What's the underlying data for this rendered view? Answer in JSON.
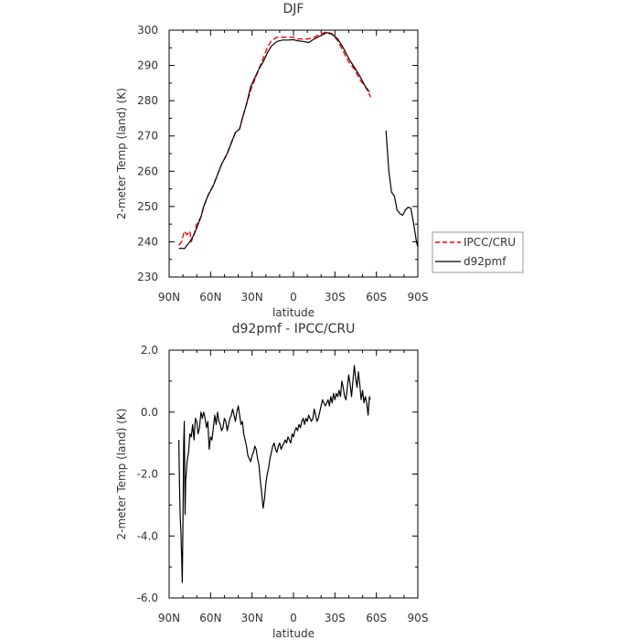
{
  "chart_data": [
    {
      "type": "line",
      "title": "DJF",
      "xlabel": "latitude",
      "ylabel": "2-meter Temp (land) (K)",
      "xlim": [
        90,
        -90
      ],
      "ylim": [
        230,
        300
      ],
      "x_tick_labels": [
        "90N",
        "60N",
        "30N",
        "0",
        "30S",
        "60S",
        "90S"
      ],
      "y_tick_labels": [
        "230",
        "240",
        "250",
        "260",
        "270",
        "280",
        "290",
        "300"
      ],
      "legend": "right-outside",
      "series": [
        {
          "name": "IPCC/CRU",
          "color": "#ff0000",
          "dash": "dashed",
          "segments": [
            [
              [
                83,
                239
              ],
              [
                81,
                240
              ],
              [
                79,
                243
              ],
              [
                77,
                242
              ],
              [
                75,
                243
              ],
              [
                74,
                240
              ],
              [
                72,
                242
              ],
              [
                70,
                245
              ],
              [
                67,
                247
              ],
              [
                65,
                250
              ],
              [
                62,
                253
              ],
              [
                58,
                256
              ],
              [
                55,
                259
              ],
              [
                52,
                262
              ],
              [
                48,
                265
              ],
              [
                45,
                268
              ],
              [
                42,
                271
              ],
              [
                39,
                272
              ],
              [
                37,
                275
              ],
              [
                34,
                279
              ],
              [
                31,
                283
              ],
              [
                28,
                286
              ],
              [
                25,
                289
              ],
              [
                22,
                292
              ],
              [
                19,
                295
              ],
              [
                16,
                297
              ],
              [
                12,
                298
              ],
              [
                8,
                298
              ],
              [
                4,
                298
              ],
              [
                0,
                298
              ],
              [
                -3,
                297.5
              ],
              [
                -7,
                297.5
              ],
              [
                -11,
                297.5
              ],
              [
                -15,
                298
              ],
              [
                -20,
                299
              ],
              [
                -24,
                299.5
              ],
              [
                -28,
                299
              ],
              [
                -32,
                297
              ],
              [
                -36,
                294
              ],
              [
                -40,
                291
              ],
              [
                -44,
                289
              ],
              [
                -48,
                286
              ],
              [
                -52,
                284
              ],
              [
                -56,
                281
              ]
            ]
          ]
        },
        {
          "name": "d92pmf",
          "color": "#000000",
          "dash": "solid",
          "segments": [
            [
              [
                83,
                238
              ],
              [
                81,
                238.2
              ],
              [
                79,
                238
              ],
              [
                77,
                239
              ],
              [
                75,
                240
              ],
              [
                72,
                242
              ],
              [
                70,
                244
              ],
              [
                67,
                247
              ],
              [
                65,
                250
              ],
              [
                62,
                253
              ],
              [
                58,
                256
              ],
              [
                55,
                259
              ],
              [
                52,
                262
              ],
              [
                48,
                265
              ],
              [
                45,
                268
              ],
              [
                42,
                271
              ],
              [
                39,
                272
              ],
              [
                37,
                275
              ],
              [
                34,
                279
              ],
              [
                31,
                284
              ],
              [
                28,
                286.5
              ],
              [
                25,
                289
              ],
              [
                22,
                291
              ],
              [
                19,
                293.5
              ],
              [
                16,
                295.5
              ],
              [
                12,
                296.8
              ],
              [
                8,
                297.2
              ],
              [
                4,
                297.2
              ],
              [
                0,
                297.3
              ],
              [
                -3,
                297
              ],
              [
                -7,
                296.8
              ],
              [
                -11,
                296.5
              ],
              [
                -15,
                297.5
              ],
              [
                -20,
                298.5
              ],
              [
                -24,
                299.3
              ],
              [
                -28,
                298.8
              ],
              [
                -32,
                297.5
              ],
              [
                -36,
                295
              ],
              [
                -40,
                292
              ],
              [
                -44,
                289.5
              ],
              [
                -48,
                287
              ],
              [
                -52,
                284
              ],
              [
                -55,
                282.5
              ]
            ],
            [
              [
                -67,
                271.5
              ],
              [
                -69,
                260
              ],
              [
                -71,
                254
              ],
              [
                -73,
                253
              ],
              [
                -75,
                249
              ],
              [
                -77,
                248
              ],
              [
                -79,
                247.5
              ],
              [
                -81,
                249
              ],
              [
                -83,
                249.8
              ],
              [
                -85,
                249.5
              ],
              [
                -87,
                245
              ],
              [
                -89,
                240
              ],
              [
                -90,
                238.5
              ]
            ]
          ]
        }
      ]
    },
    {
      "type": "line",
      "title": "d92pmf - IPCC/CRU",
      "xlabel": "latitude",
      "ylabel": "2-meter Temp (land) (K)",
      "xlim": [
        90,
        -90
      ],
      "ylim": [
        -6,
        2
      ],
      "x_tick_labels": [
        "90N",
        "60N",
        "30N",
        "0",
        "30S",
        "60S",
        "90S"
      ],
      "y_tick_labels": [
        "-6.0",
        "-4.0",
        "-2.0",
        "0.0",
        "2.0"
      ],
      "series": [
        {
          "color": "#000000",
          "values_xy": [
            [
              83,
              -0.9
            ],
            [
              82.5,
              -2.3
            ],
            [
              82,
              -3.4
            ],
            [
              81.5,
              -3.8
            ],
            [
              81,
              -4.6
            ],
            [
              80.5,
              -5.5
            ],
            [
              80,
              -3.6
            ],
            [
              79.5,
              -1.0
            ],
            [
              79,
              -0.3
            ],
            [
              78.5,
              -3.3
            ],
            [
              78,
              -2.2
            ],
            [
              77,
              -1.6
            ],
            [
              76,
              -1.3
            ],
            [
              75,
              -0.7
            ],
            [
              74,
              -0.8
            ],
            [
              73,
              -0.4
            ],
            [
              72,
              -0.9
            ],
            [
              71,
              -0.2
            ],
            [
              70,
              -0.3
            ],
            [
              69,
              -0.7
            ],
            [
              68,
              -0.5
            ],
            [
              67,
              0.0
            ],
            [
              66,
              -0.2
            ],
            [
              65,
              0.0
            ],
            [
              64,
              -0.2
            ],
            [
              63,
              -0.5
            ],
            [
              62,
              -0.3
            ],
            [
              61,
              -1.2
            ],
            [
              60,
              -0.8
            ],
            [
              59,
              -0.9
            ],
            [
              58,
              -0.5
            ],
            [
              57,
              -0.1
            ],
            [
              56,
              -0.4
            ],
            [
              55,
              0.0
            ],
            [
              54,
              -0.3
            ],
            [
              53,
              -0.4
            ],
            [
              52,
              -0.6
            ],
            [
              51,
              -0.5
            ],
            [
              50,
              -0.2
            ],
            [
              49,
              -0.3
            ],
            [
              48,
              -0.6
            ],
            [
              47,
              -0.4
            ],
            [
              46,
              -0.2
            ],
            [
              45,
              -0.1
            ],
            [
              44,
              0.1
            ],
            [
              43,
              -0.1
            ],
            [
              42,
              -0.3
            ],
            [
              41,
              0.0
            ],
            [
              40,
              0.2
            ],
            [
              39,
              -0.1
            ],
            [
              38,
              -0.4
            ],
            [
              37,
              -0.3
            ],
            [
              36,
              -0.7
            ],
            [
              35,
              -0.9
            ],
            [
              34,
              -1.1
            ],
            [
              33,
              -1.4
            ],
            [
              32,
              -1.5
            ],
            [
              31,
              -1.6
            ],
            [
              30,
              -1.4
            ],
            [
              29,
              -1.3
            ],
            [
              28,
              -1.1
            ],
            [
              27,
              -1.2
            ],
            [
              26,
              -1.5
            ],
            [
              25,
              -1.7
            ],
            [
              24,
              -2.2
            ],
            [
              23,
              -2.6
            ],
            [
              22,
              -3.1
            ],
            [
              21,
              -2.8
            ],
            [
              20,
              -2.3
            ],
            [
              19,
              -2.0
            ],
            [
              18,
              -1.8
            ],
            [
              17,
              -1.5
            ],
            [
              16,
              -1.3
            ],
            [
              15,
              -1.1
            ],
            [
              14,
              -1.0
            ],
            [
              13,
              -1.2
            ],
            [
              12,
              -1.3
            ],
            [
              11,
              -1.1
            ],
            [
              10,
              -1.0
            ],
            [
              9,
              -1.2
            ],
            [
              8,
              -1.1
            ],
            [
              7,
              -1.0
            ],
            [
              6,
              -0.9
            ],
            [
              5,
              -1.0
            ],
            [
              4,
              -0.8
            ],
            [
              3,
              -0.9
            ],
            [
              2,
              -1.0
            ],
            [
              1,
              -0.7
            ],
            [
              0,
              -0.8
            ],
            [
              -1,
              -0.6
            ],
            [
              -2,
              -0.5
            ],
            [
              -3,
              -0.6
            ],
            [
              -4,
              -0.4
            ],
            [
              -5,
              -0.5
            ],
            [
              -6,
              -0.3
            ],
            [
              -7,
              -0.2
            ],
            [
              -8,
              -0.4
            ],
            [
              -9,
              -0.2
            ],
            [
              -10,
              -0.3
            ],
            [
              -11,
              -0.1
            ],
            [
              -12,
              -0.2
            ],
            [
              -13,
              -0.3
            ],
            [
              -14,
              -0.2
            ],
            [
              -15,
              0.1
            ],
            [
              -16,
              -0.1
            ],
            [
              -17,
              -0.3
            ],
            [
              -18,
              -0.2
            ],
            [
              -19,
              0.0
            ],
            [
              -20,
              0.2
            ],
            [
              -21,
              0.4
            ],
            [
              -22,
              0.3
            ],
            [
              -23,
              0.2
            ],
            [
              -24,
              0.3
            ],
            [
              -25,
              0.4
            ],
            [
              -26,
              0.2
            ],
            [
              -27,
              0.5
            ],
            [
              -28,
              0.3
            ],
            [
              -29,
              0.6
            ],
            [
              -30,
              0.4
            ],
            [
              -31,
              0.6
            ],
            [
              -32,
              0.5
            ],
            [
              -33,
              0.7
            ],
            [
              -34,
              0.5
            ],
            [
              -35,
              1.0
            ],
            [
              -36,
              0.8
            ],
            [
              -37,
              0.5
            ],
            [
              -38,
              0.4
            ],
            [
              -39,
              0.8
            ],
            [
              -40,
              1.2
            ],
            [
              -41,
              0.9
            ],
            [
              -42,
              0.5
            ],
            [
              -43,
              1.0
            ],
            [
              -44,
              1.5
            ],
            [
              -45,
              1.1
            ],
            [
              -46,
              0.8
            ],
            [
              -47,
              1.3
            ],
            [
              -48,
              0.9
            ],
            [
              -49,
              0.4
            ],
            [
              -50,
              0.7
            ],
            [
              -51,
              0.3
            ],
            [
              -52,
              0.5
            ],
            [
              -53,
              0.3
            ],
            [
              -54,
              -0.1
            ],
            [
              -55,
              0.5
            ],
            [
              -55.5,
              0.4
            ]
          ]
        }
      ]
    }
  ]
}
